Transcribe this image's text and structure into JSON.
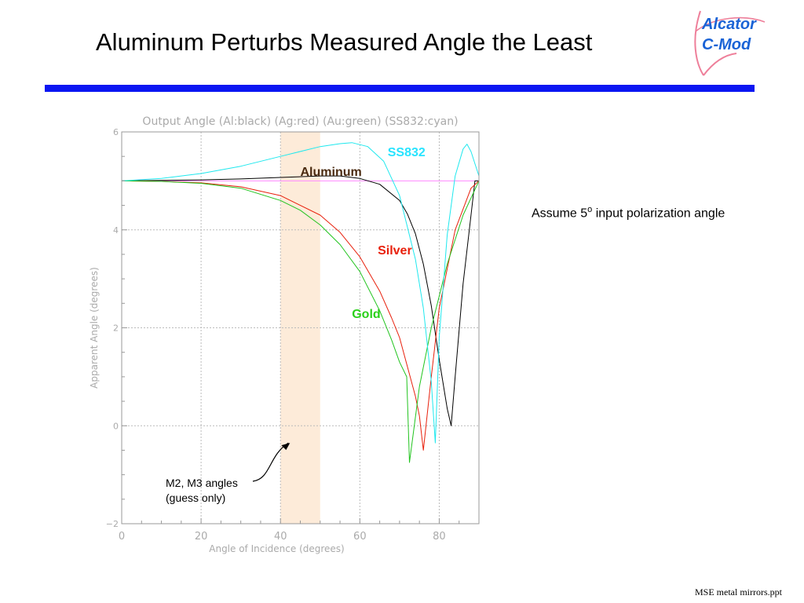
{
  "slide": {
    "title": "Aluminum Perturbs Measured Angle the Least",
    "logo_line1": "Alcator",
    "logo_line2": "C-Mod",
    "note_prefix": "Assume 5",
    "note_superscript": "o",
    "note_suffix": " input polarization angle",
    "footer": "MSE metal mirrors.ppt"
  },
  "chart_data": {
    "type": "line",
    "title": "Output Angle (Al:black) (Ag:red) (Au:green) (SS832:cyan)",
    "xlabel": "Angle of Incidence (degrees)",
    "ylabel": "Apparent Angle (degrees)",
    "xlim": [
      0,
      90
    ],
    "ylim": [
      -2,
      6
    ],
    "x_ticks": [
      0,
      20,
      40,
      60,
      80
    ],
    "y_ticks": [
      -2,
      0,
      2,
      4,
      6
    ],
    "x_tick_labels": [
      "0",
      "20",
      "40",
      "60",
      "80"
    ],
    "y_tick_labels": [
      "−2",
      "0",
      "2",
      "4",
      "6"
    ],
    "grid": true,
    "reference_line": {
      "y": 5,
      "color": "#ff88ff"
    },
    "shaded_band": {
      "x": [
        40,
        50
      ],
      "color": "#fdebd9",
      "label": "M2, M3 angles\n(guess only)"
    },
    "series": [
      {
        "name": "Aluminum",
        "color": "#000000",
        "label_color": "#4a2a10",
        "x": [
          0,
          10,
          20,
          30,
          40,
          50,
          55,
          60,
          65,
          70,
          72,
          74,
          76,
          78,
          80,
          82,
          83,
          84,
          86,
          88,
          89,
          90
        ],
        "y": [
          5.0,
          5.01,
          5.02,
          5.04,
          5.07,
          5.1,
          5.1,
          5.05,
          4.93,
          4.6,
          4.32,
          3.92,
          3.3,
          2.45,
          1.35,
          0.35,
          0.0,
          1.0,
          2.9,
          4.3,
          5.0,
          5.0
        ]
      },
      {
        "name": "Silver",
        "color": "#e8200c",
        "label_color": "#e8200c",
        "x": [
          0,
          10,
          20,
          30,
          40,
          50,
          55,
          60,
          65,
          68,
          70,
          72,
          74,
          75,
          76,
          78,
          80,
          84,
          88,
          90
        ],
        "y": [
          5.0,
          4.99,
          4.96,
          4.88,
          4.7,
          4.3,
          3.95,
          3.45,
          2.75,
          2.2,
          1.8,
          1.2,
          0.6,
          0.2,
          -0.5,
          1.0,
          2.4,
          4.0,
          4.85,
          5.0
        ]
      },
      {
        "name": "Gold",
        "color": "#22c41f",
        "label_color": "#2ad01a",
        "x": [
          0,
          10,
          20,
          30,
          40,
          45,
          50,
          55,
          60,
          65,
          68,
          70,
          71.8,
          72.5,
          75,
          78,
          82,
          86,
          90
        ],
        "y": [
          5.0,
          4.99,
          4.95,
          4.85,
          4.6,
          4.4,
          4.1,
          3.7,
          3.15,
          2.35,
          1.75,
          1.3,
          1.0,
          -0.75,
          0.8,
          2.0,
          3.3,
          4.3,
          5.0
        ]
      },
      {
        "name": "SS832",
        "color": "#1ee8ee",
        "label_color": "#28e4ff",
        "x": [
          0,
          10,
          20,
          30,
          40,
          50,
          55,
          58,
          62,
          66,
          70,
          74,
          76,
          78,
          79,
          80,
          82,
          84,
          86,
          87,
          88,
          89,
          90
        ],
        "y": [
          5.0,
          5.05,
          5.15,
          5.3,
          5.5,
          5.7,
          5.76,
          5.78,
          5.7,
          5.4,
          4.7,
          3.4,
          2.4,
          0.9,
          -0.35,
          1.8,
          3.9,
          5.1,
          5.65,
          5.75,
          5.6,
          5.35,
          5.1
        ]
      }
    ]
  }
}
